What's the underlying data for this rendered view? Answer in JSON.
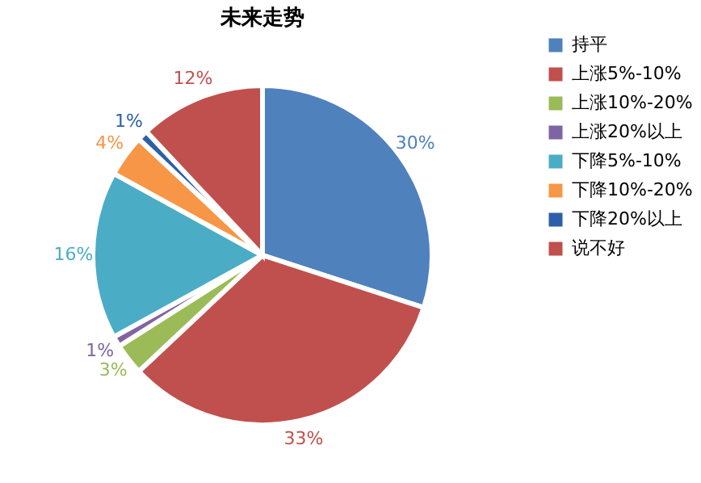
{
  "chart_data": {
    "type": "pie",
    "title": "未来走势",
    "categories": [
      "持平",
      "上涨5%-10%",
      "上涨10%-20%",
      "上涨20%以上",
      "下降5%-10%",
      "下降10%-20%",
      "下降20%以上",
      "说不好"
    ],
    "values": [
      30,
      33,
      3,
      1,
      16,
      4,
      1,
      12
    ],
    "value_labels": [
      "30%",
      "33%",
      "3%",
      "1%",
      "16%",
      "4%",
      "1%",
      "12%"
    ],
    "colors": [
      "#4f81bd",
      "#c0504d",
      "#9bbb59",
      "#8064a2",
      "#4bacc6",
      "#f79646",
      "#2c5fa8",
      "#c0504d"
    ],
    "legend": "right"
  }
}
